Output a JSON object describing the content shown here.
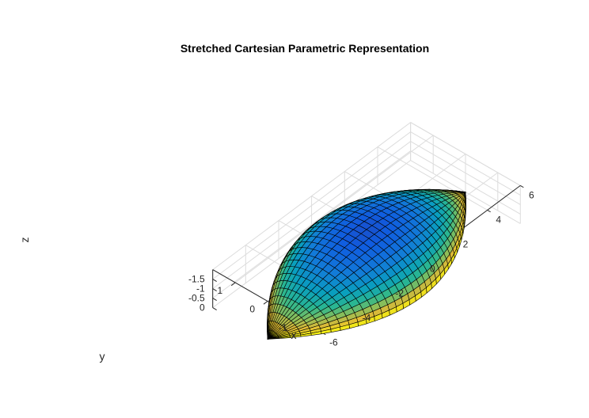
{
  "chart_data": {
    "type": "surface3d",
    "title": "Stretched Cartesian Parametric Representation",
    "xlabel": "x",
    "ylabel": "y",
    "zlabel": "z",
    "xlim": [
      -6,
      6
    ],
    "ylim": [
      -1.7,
      1.7
    ],
    "zlim": [
      -2,
      0
    ],
    "xticks": [
      -6,
      -4,
      -2,
      0,
      2,
      4,
      6
    ],
    "xtick_labels": [
      "-6",
      "-4",
      "-2",
      "0",
      "2",
      "4",
      "6"
    ],
    "yticks": [
      -1,
      0,
      1
    ],
    "ytick_labels": [
      "-1",
      "0",
      "1"
    ],
    "zticks": [
      -1.5,
      -1,
      -0.5,
      0
    ],
    "ztick_labels": [
      "-1.5",
      "-1",
      "-0.5",
      "0"
    ],
    "grid": true,
    "colormap": "parula",
    "surface": {
      "description_free": true,
      "x_range": [
        -6,
        6
      ],
      "half_width_max": 1.7,
      "depth_max": 1.9,
      "u_samples": 36,
      "v_samples": 22
    },
    "colors": {
      "edge": "#000000",
      "grid": "#dcdcdc",
      "axis": "#262626"
    }
  }
}
